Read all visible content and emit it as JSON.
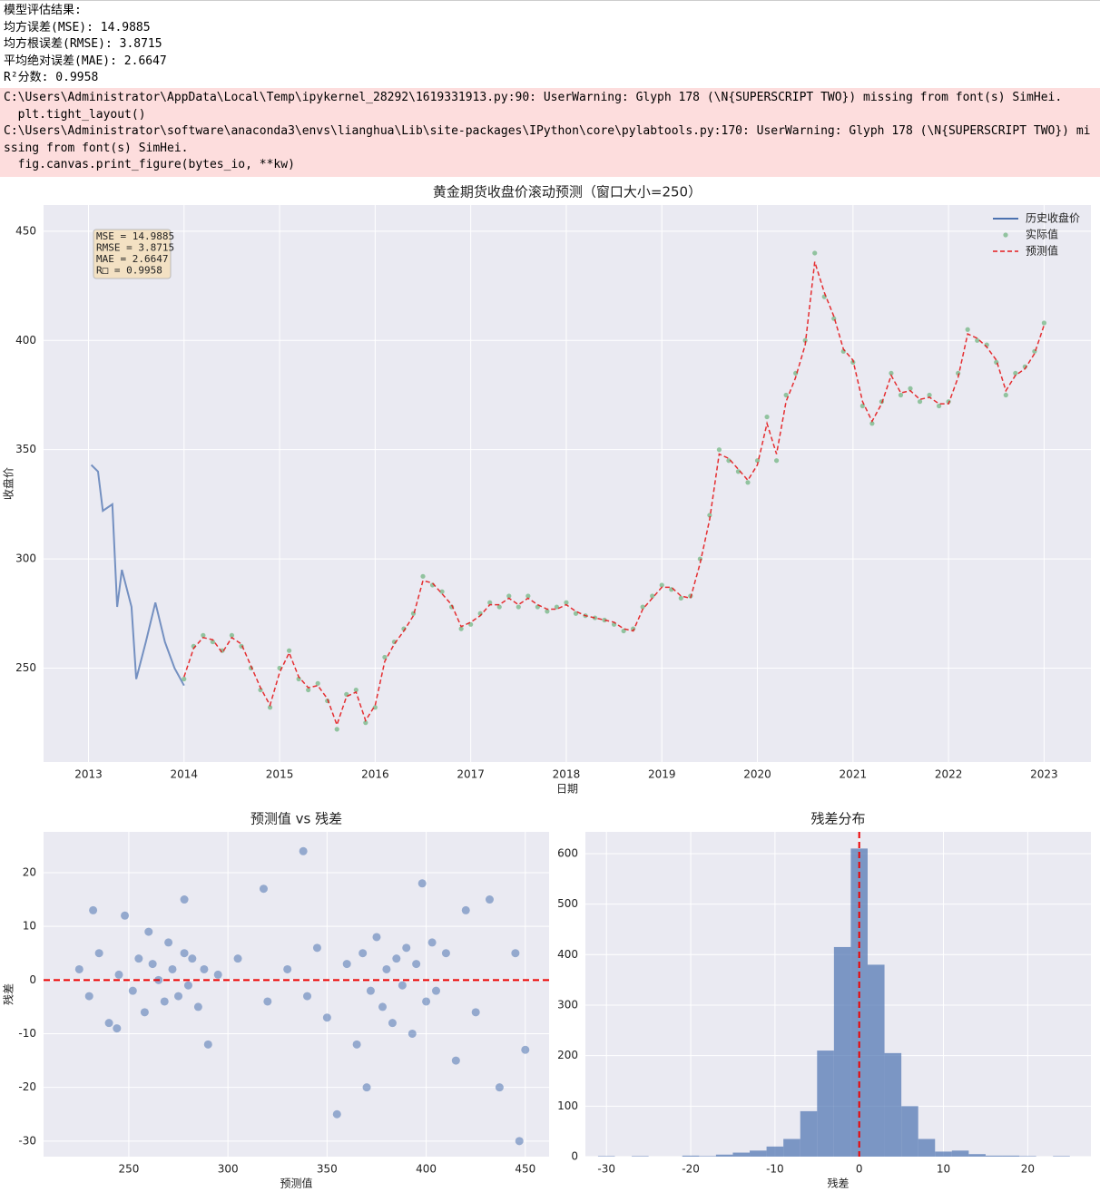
{
  "output_lines": [
    "模型评估结果:",
    "均方误差(MSE): 14.9885",
    "均方根误差(RMSE): 3.8715",
    "平均绝对误差(MAE): 2.6647",
    "R²分数: 0.9958"
  ],
  "warning_lines": [
    "C:\\Users\\Administrator\\AppData\\Local\\Temp\\ipykernel_28292\\1619331913.py:90: UserWarning: Glyph 178 (\\N{SUPERSCRIPT TWO}) missing from font(s) SimHei.",
    "  plt.tight_layout()",
    "C:\\Users\\Administrator\\software\\anaconda3\\envs\\lianghua\\Lib\\site-packages\\IPython\\core\\pylabtools.py:170: UserWarning: Glyph 178 (\\N{SUPERSCRIPT TWO}) missing from font(s) SimHei.",
    "  fig.canvas.print_figure(bytes_io, **kw)"
  ],
  "chart_data": [
    {
      "type": "line",
      "title": "黄金期货收盘价滚动预测（窗口大小=250）",
      "x_label": "日期",
      "y_label": "收盘价",
      "xlim": [
        2012.53,
        2023.49
      ],
      "xticks": [
        2013,
        2014,
        2015,
        2016,
        2017,
        2018,
        2019,
        2020,
        2021,
        2022,
        2023
      ],
      "ylim": [
        207,
        462
      ],
      "yticks": [
        250,
        300,
        350,
        400,
        450
      ],
      "grid": true,
      "legend": "upper right",
      "annotation": [
        "MSE = 14.9885",
        "RMSE = 3.8715",
        "MAE = 2.6647",
        "R□ = 0.9958"
      ],
      "series": [
        {
          "name": "历史收盘价",
          "color": "#4c72b0",
          "style": "line",
          "x": [
            2013.03,
            2013.1,
            2013.15,
            2013.25,
            2013.3,
            2013.35,
            2013.45,
            2013.5,
            2013.6,
            2013.7,
            2013.8,
            2013.9,
            2014.0
          ],
          "values": [
            343,
            340,
            322,
            325,
            278,
            295,
            278,
            245,
            262,
            280,
            262,
            250,
            242
          ]
        },
        {
          "name": "实际值",
          "color": "#55a868",
          "style": "markers",
          "x": [
            2014.0,
            2014.1,
            2014.2,
            2014.3,
            2014.4,
            2014.5,
            2014.6,
            2014.7,
            2014.8,
            2014.9,
            2015.0,
            2015.1,
            2015.2,
            2015.3,
            2015.4,
            2015.5,
            2015.6,
            2015.7,
            2015.8,
            2015.9,
            2016.0,
            2016.1,
            2016.2,
            2016.3,
            2016.4,
            2016.5,
            2016.6,
            2016.7,
            2016.8,
            2016.9,
            2017.0,
            2017.1,
            2017.2,
            2017.3,
            2017.4,
            2017.5,
            2017.6,
            2017.7,
            2017.8,
            2017.9,
            2018.0,
            2018.1,
            2018.2,
            2018.3,
            2018.4,
            2018.5,
            2018.6,
            2018.7,
            2018.8,
            2018.9,
            2019.0,
            2019.1,
            2019.2,
            2019.3,
            2019.4,
            2019.5,
            2019.6,
            2019.7,
            2019.8,
            2019.9,
            2020.0,
            2020.1,
            2020.2,
            2020.3,
            2020.4,
            2020.5,
            2020.6,
            2020.7,
            2020.8,
            2020.9,
            2021.0,
            2021.1,
            2021.2,
            2021.3,
            2021.4,
            2021.5,
            2021.6,
            2021.7,
            2021.8,
            2021.9,
            2022.0,
            2022.1,
            2022.2,
            2022.3,
            2022.4,
            2022.5,
            2022.6,
            2022.7,
            2022.8,
            2022.9,
            2023.0
          ],
          "values": [
            245,
            260,
            265,
            262,
            258,
            265,
            260,
            250,
            240,
            232,
            250,
            258,
            245,
            240,
            243,
            235,
            222,
            238,
            240,
            225,
            232,
            255,
            262,
            268,
            275,
            292,
            288,
            285,
            278,
            268,
            270,
            275,
            280,
            278,
            283,
            278,
            283,
            278,
            276,
            278,
            280,
            275,
            274,
            273,
            272,
            270,
            267,
            268,
            278,
            283,
            288,
            286,
            282,
            283,
            300,
            320,
            350,
            345,
            340,
            335,
            345,
            365,
            345,
            375,
            385,
            400,
            440,
            420,
            410,
            395,
            390,
            370,
            362,
            372,
            385,
            375,
            378,
            372,
            375,
            370,
            372,
            385,
            405,
            400,
            398,
            390,
            375,
            385,
            388,
            395,
            408
          ]
        },
        {
          "name": "预测值",
          "color": "#e41a1c",
          "style": "dashed",
          "x": [
            2014.0,
            2014.1,
            2014.2,
            2014.3,
            2014.4,
            2014.5,
            2014.6,
            2014.7,
            2014.8,
            2014.9,
            2015.0,
            2015.1,
            2015.2,
            2015.3,
            2015.4,
            2015.5,
            2015.6,
            2015.7,
            2015.8,
            2015.9,
            2016.0,
            2016.1,
            2016.2,
            2016.3,
            2016.4,
            2016.5,
            2016.6,
            2016.7,
            2016.8,
            2016.9,
            2017.0,
            2017.1,
            2017.2,
            2017.3,
            2017.4,
            2017.5,
            2017.6,
            2017.7,
            2017.8,
            2017.9,
            2018.0,
            2018.1,
            2018.2,
            2018.3,
            2018.4,
            2018.5,
            2018.6,
            2018.7,
            2018.8,
            2018.9,
            2019.0,
            2019.1,
            2019.2,
            2019.3,
            2019.4,
            2019.5,
            2019.6,
            2019.7,
            2019.8,
            2019.9,
            2020.0,
            2020.1,
            2020.2,
            2020.3,
            2020.4,
            2020.5,
            2020.6,
            2020.7,
            2020.8,
            2020.9,
            2021.0,
            2021.1,
            2021.2,
            2021.3,
            2021.4,
            2021.5,
            2021.6,
            2021.7,
            2021.8,
            2021.9,
            2022.0,
            2022.1,
            2022.2,
            2022.3,
            2022.4,
            2022.5,
            2022.6,
            2022.7,
            2022.8,
            2022.9,
            2023.0
          ],
          "values": [
            246,
            259,
            264,
            263,
            257,
            264,
            261,
            251,
            241,
            233,
            248,
            257,
            246,
            241,
            242,
            236,
            224,
            237,
            239,
            226,
            233,
            253,
            261,
            267,
            274,
            290,
            289,
            284,
            279,
            269,
            271,
            274,
            279,
            279,
            282,
            279,
            282,
            279,
            277,
            277,
            279,
            276,
            274,
            273,
            272,
            271,
            268,
            267,
            277,
            282,
            287,
            287,
            283,
            282,
            298,
            318,
            348,
            346,
            341,
            336,
            343,
            362,
            348,
            372,
            383,
            398,
            436,
            422,
            411,
            396,
            391,
            372,
            363,
            371,
            384,
            376,
            377,
            373,
            374,
            371,
            371,
            383,
            403,
            401,
            397,
            391,
            377,
            384,
            387,
            394,
            407
          ]
        }
      ]
    },
    {
      "type": "scatter",
      "title": "预测值 vs 残差",
      "x_label": "预测值",
      "y_label": "残差",
      "color": "#4c72b0",
      "xlim": [
        207,
        462
      ],
      "xticks": [
        250,
        300,
        350,
        400,
        450
      ],
      "ylim": [
        -32.9,
        27.6
      ],
      "yticks": [
        -30,
        -20,
        -10,
        0,
        10,
        20
      ],
      "grid": true,
      "hline": 0,
      "x": [
        225,
        230,
        235,
        240,
        245,
        248,
        252,
        255,
        258,
        262,
        265,
        268,
        270,
        272,
        275,
        278,
        280,
        282,
        285,
        288,
        290,
        232,
        244,
        260,
        278,
        295,
        305,
        318,
        320,
        330,
        338,
        340,
        345,
        350,
        355,
        360,
        365,
        368,
        370,
        372,
        375,
        378,
        380,
        383,
        385,
        388,
        390,
        393,
        395,
        398,
        400,
        403,
        405,
        410,
        415,
        420,
        425,
        432,
        437,
        447,
        450,
        445
      ],
      "values": [
        2,
        -3,
        5,
        -8,
        1,
        12,
        -2,
        4,
        -6,
        3,
        0,
        -4,
        7,
        2,
        -3,
        5,
        -1,
        4,
        -5,
        2,
        -12,
        13,
        -9,
        9,
        15,
        1,
        4,
        17,
        -4,
        2,
        24,
        -3,
        6,
        -7,
        -25,
        3,
        -12,
        5,
        -20,
        -2,
        8,
        -5,
        2,
        -8,
        4,
        -1,
        6,
        -10,
        3,
        18,
        -4,
        7,
        -2,
        5,
        -15,
        13,
        -6,
        15,
        -20,
        -30,
        -13,
        5
      ]
    },
    {
      "type": "histogram",
      "title": "残差分布",
      "x_label": "残差",
      "color": "#4c72b0",
      "vline": 0,
      "xlim": [
        -32.5,
        27.5
      ],
      "xticks": [
        -30,
        -20,
        -10,
        0,
        10,
        20
      ],
      "ylim": [
        0,
        643
      ],
      "yticks": [
        0,
        100,
        200,
        300,
        400,
        500,
        600
      ],
      "grid": true,
      "bins": [
        -31,
        -29,
        -27,
        -25,
        -23,
        -21,
        -19,
        -17,
        -15,
        -13,
        -11,
        -9,
        -7,
        -5,
        -3,
        -1,
        1,
        3,
        5,
        7,
        9,
        11,
        13,
        15,
        17,
        19,
        21,
        23,
        25
      ],
      "values": [
        1,
        0,
        1,
        0,
        0,
        2,
        1,
        4,
        8,
        12,
        20,
        35,
        90,
        210,
        415,
        610,
        380,
        205,
        100,
        35,
        10,
        12,
        5,
        2,
        2,
        1,
        0,
        1
      ]
    }
  ]
}
